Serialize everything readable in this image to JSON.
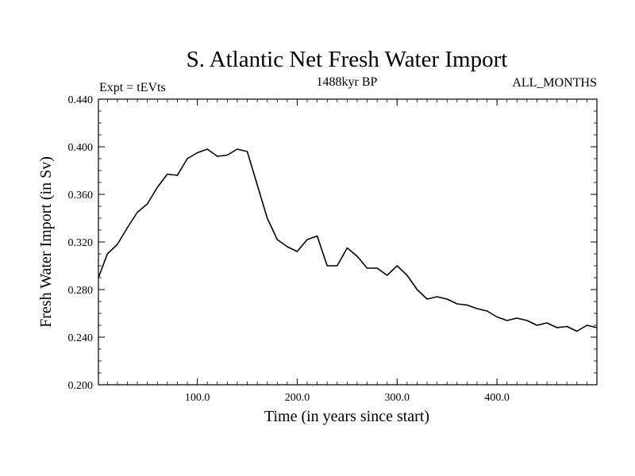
{
  "chart_data": {
    "type": "line",
    "title": "S. Atlantic Net Fresh Water Import",
    "subtitle_left": "Expt = tEVts",
    "subtitle_center": "1488kyr BP",
    "subtitle_right": "ALL_MONTHS",
    "xlabel": "Time (in years since start)",
    "ylabel": "Fresh Water Import (in Sv)",
    "xlim": [
      1,
      500
    ],
    "ylim": [
      0.2,
      0.44
    ],
    "x_ticks": [
      100,
      200,
      300,
      400
    ],
    "x_tick_labels": [
      "100.0",
      "200.0",
      "300.0",
      "400.0"
    ],
    "y_ticks": [
      0.2,
      0.24,
      0.28,
      0.32,
      0.36,
      0.4,
      0.44
    ],
    "y_tick_labels": [
      "0.200",
      "0.240",
      "0.280",
      "0.320",
      "0.360",
      "0.400",
      "0.440"
    ],
    "grid": false,
    "series": [
      {
        "name": "Net Fresh Water Import",
        "color": "#000000",
        "x": [
          1,
          10,
          20,
          30,
          40,
          50,
          60,
          70,
          80,
          90,
          100,
          110,
          120,
          130,
          140,
          150,
          160,
          170,
          180,
          190,
          200,
          210,
          220,
          230,
          240,
          250,
          260,
          270,
          280,
          290,
          300,
          310,
          320,
          330,
          340,
          350,
          360,
          370,
          380,
          390,
          400,
          410,
          420,
          430,
          440,
          450,
          460,
          470,
          480,
          490,
          500
        ],
        "values": [
          0.29,
          0.31,
          0.318,
          0.332,
          0.345,
          0.352,
          0.366,
          0.377,
          0.376,
          0.39,
          0.395,
          0.398,
          0.392,
          0.393,
          0.398,
          0.396,
          0.368,
          0.34,
          0.322,
          0.316,
          0.312,
          0.322,
          0.325,
          0.3,
          0.3,
          0.315,
          0.308,
          0.298,
          0.298,
          0.292,
          0.3,
          0.292,
          0.28,
          0.272,
          0.274,
          0.272,
          0.268,
          0.267,
          0.264,
          0.262,
          0.257,
          0.254,
          0.256,
          0.254,
          0.25,
          0.252,
          0.248,
          0.249,
          0.245,
          0.25,
          0.248
        ]
      }
    ]
  }
}
